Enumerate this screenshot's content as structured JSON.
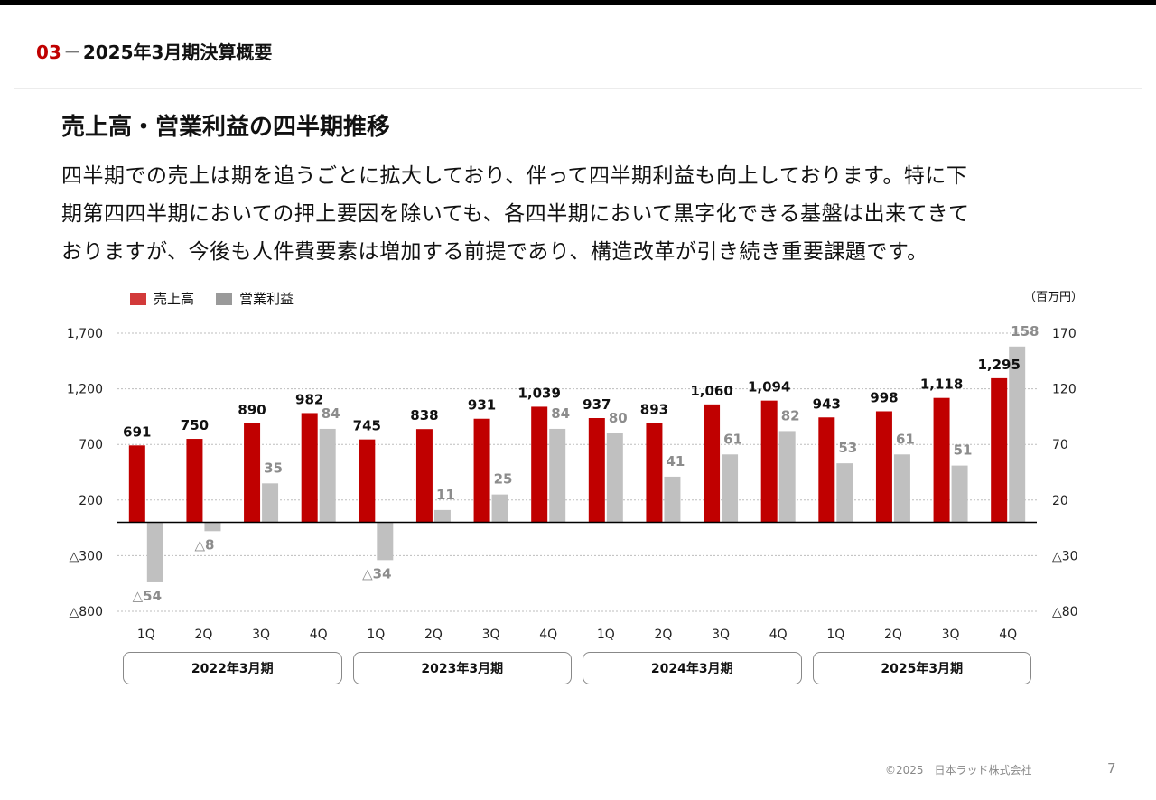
{
  "header": {
    "section_number": "03",
    "separator": "－",
    "section_title": "2025年3月期決算概要"
  },
  "title": "売上高・営業利益の四半期推移",
  "body_lines": [
    "四半期での売上は期を追うごとに拡大しており、伴って四半期利益も向上しております。特に下",
    "期第四四半期においての押上要因を除いても、各四半期において黒字化できる基盤は出来てきて",
    "おりますが、今後も人件費要素は増加する前提であり、構造改革が引き続き重要課題です。"
  ],
  "legend": [
    {
      "label": "売上高",
      "color": "#c00000"
    },
    {
      "label": "営業利益",
      "color": "#a6a6a6"
    }
  ],
  "unit": "（百万円）",
  "chart_data": {
    "type": "bar",
    "categories": [
      "1Q",
      "2Q",
      "3Q",
      "4Q",
      "1Q",
      "2Q",
      "3Q",
      "4Q",
      "1Q",
      "2Q",
      "3Q",
      "4Q",
      "1Q",
      "2Q",
      "3Q",
      "4Q"
    ],
    "groups": [
      "2022年3月期",
      "2023年3月期",
      "2024年3月期",
      "2025年3月期"
    ],
    "series": [
      {
        "name": "売上高",
        "axis": "left",
        "color": "#c00000",
        "values": [
          691,
          750,
          890,
          982,
          745,
          838,
          931,
          1039,
          937,
          893,
          1060,
          1094,
          943,
          998,
          1118,
          1295
        ],
        "labels": [
          "691",
          "750",
          "890",
          "982",
          "745",
          "838",
          "931",
          "1,039",
          "937",
          "893",
          "1,060",
          "1,094",
          "943",
          "998",
          "1,118",
          "1,295"
        ]
      },
      {
        "name": "営業利益",
        "axis": "right",
        "color": "#c0c0c0",
        "values": [
          -54,
          -8,
          35,
          84,
          -34,
          11,
          25,
          84,
          80,
          41,
          61,
          82,
          53,
          61,
          51,
          158
        ],
        "labels": [
          "△54",
          "△8",
          "35",
          "84",
          "△34",
          "11",
          "25",
          "84",
          "80",
          "41",
          "61",
          "82",
          "53",
          "61",
          "51",
          "158"
        ]
      }
    ],
    "y_left": {
      "range": [
        -800,
        1700
      ],
      "ticks": [
        1700,
        1200,
        700,
        200,
        -300,
        -800
      ],
      "tick_labels": [
        "1,700",
        "1,200",
        "700",
        "200",
        "△300",
        "△800"
      ]
    },
    "y_right": {
      "range": [
        -80,
        170
      ],
      "ticks": [
        170,
        120,
        70,
        20,
        -30,
        -80
      ],
      "tick_labels": [
        "170",
        "120",
        "70",
        "20",
        "△30",
        "△80"
      ]
    },
    "grid": "dotted horizontal"
  },
  "footer": {
    "copyright": "©2025　日本ラッド株式会社",
    "page": "7"
  }
}
